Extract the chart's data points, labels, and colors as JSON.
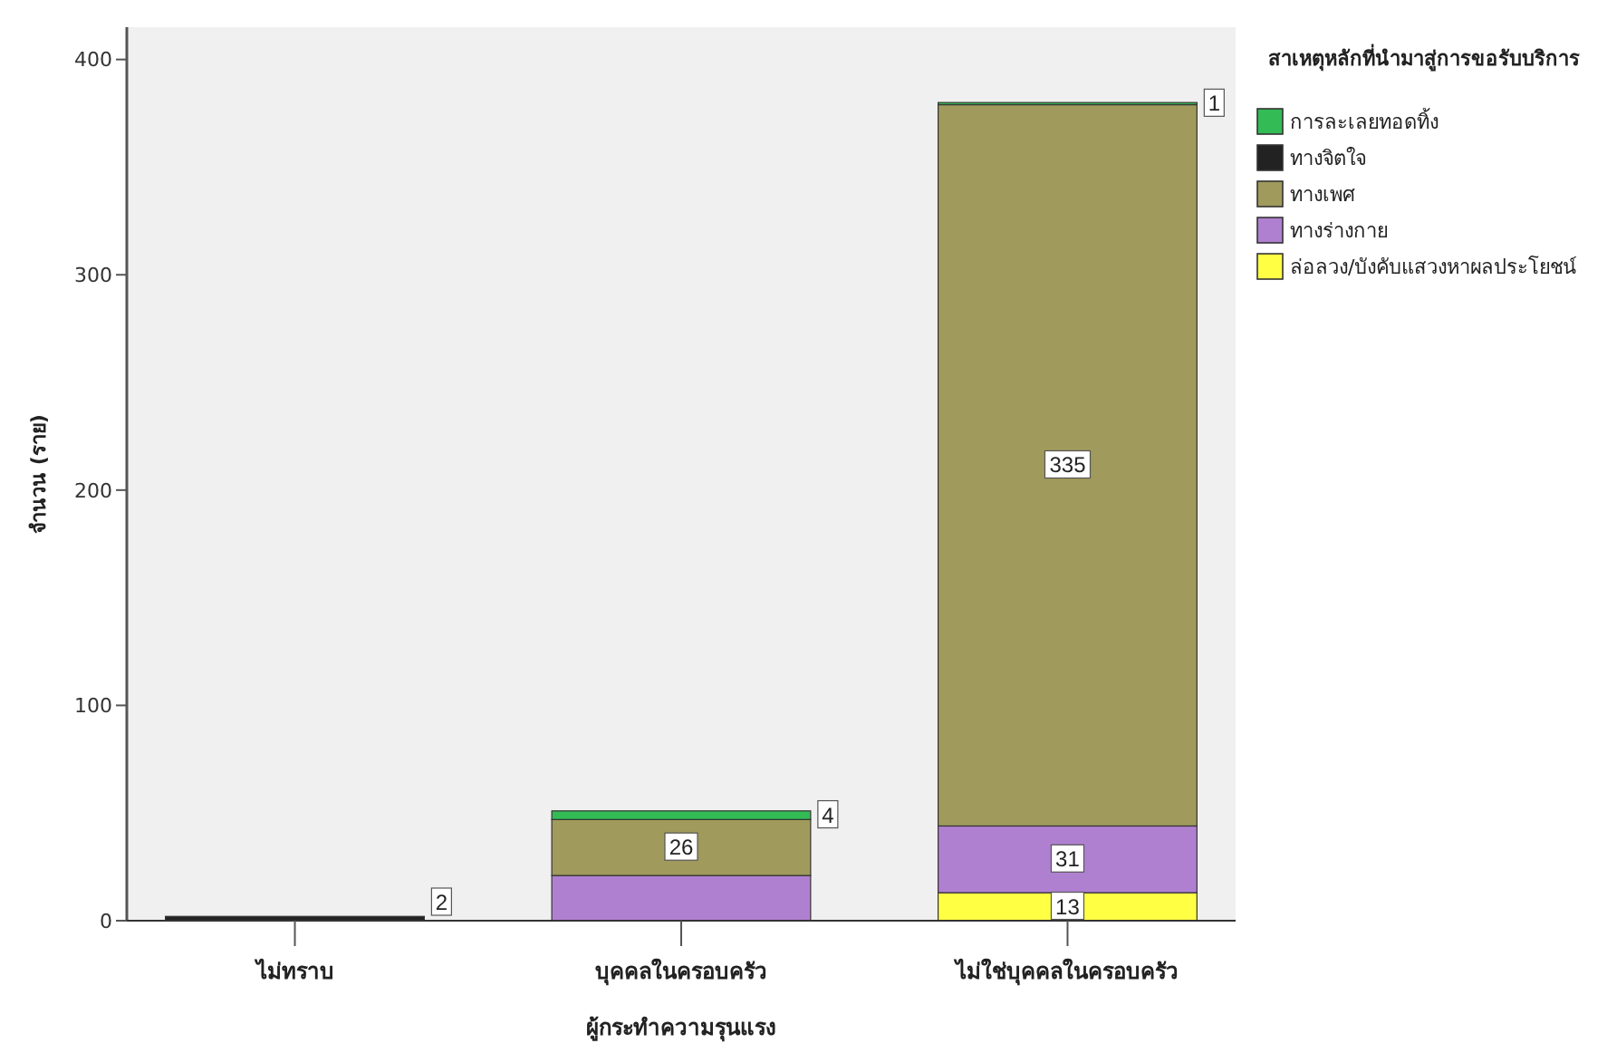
{
  "chart_data": {
    "type": "bar",
    "stacked": true,
    "xlabel": "ผู้กระทำความรุนแรง",
    "ylabel": "จำนวน (ราย)",
    "legend_title": "สาเหตุหลักที่นำมาสู่การขอรับบริการ",
    "legend": "right",
    "grid": false,
    "categories": [
      "ไม่ทราบ",
      "บุคคลในครอบครัว",
      "ไม่ใช่บุคคลในครอบครัว"
    ],
    "ylim": [
      0,
      415
    ],
    "yticks": [
      0,
      100,
      200,
      300,
      400
    ],
    "series": [
      {
        "name": "ล่อลวง/บังคับแสวงหาผลประโยชน์",
        "color": "#ffff44",
        "values": [
          null,
          null,
          13
        ],
        "value_labels": [
          null,
          null,
          "13"
        ]
      },
      {
        "name": "ทางร่างกาย",
        "color": "#b080d0",
        "values": [
          null,
          21,
          31
        ],
        "value_labels": [
          null,
          null,
          "31"
        ]
      },
      {
        "name": "ทางเพศ",
        "color": "#a09a5c",
        "values": [
          null,
          26,
          335
        ],
        "value_labels": [
          null,
          "26",
          "335"
        ]
      },
      {
        "name": "ทางจิตใจ",
        "color": "#222222",
        "values": [
          2,
          null,
          null
        ],
        "value_labels": [
          "2",
          null,
          null
        ]
      },
      {
        "name": "การละเลยทอดทิ้ง",
        "color": "#33bb55",
        "values": [
          null,
          4,
          1
        ],
        "value_labels": [
          null,
          "4",
          "1"
        ]
      }
    ]
  }
}
